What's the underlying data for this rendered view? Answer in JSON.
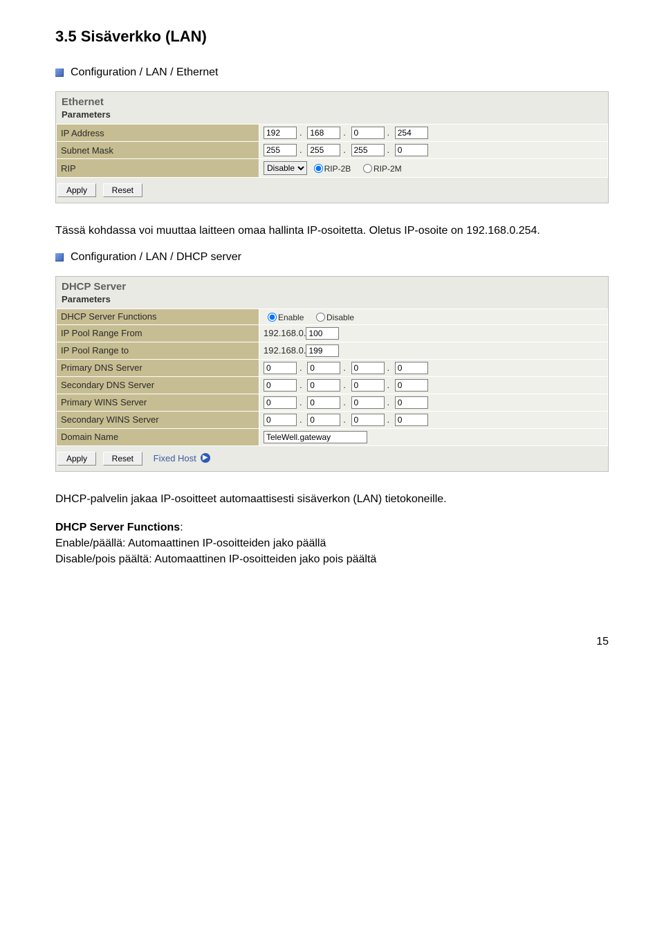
{
  "page": {
    "title": "3.5 Sisäverkko (LAN)",
    "number": "15",
    "typography": {
      "title_fontsize_pt": 16,
      "body_fontsize_pt": 12
    },
    "colors": {
      "label_cell_bg": "#c7bd92",
      "field_cell_bg": "#f0f0ea",
      "panel_bg": "#e9eae4",
      "panel_title_color": "#5f6060",
      "link_color": "#3b5aa0",
      "bullet_gradient_from": "#7aa0e8",
      "bullet_gradient_to": "#3a63b8"
    }
  },
  "section1": {
    "breadcrumb": "Configuration / LAN / Ethernet",
    "panel_title": "Ethernet",
    "panel_subtitle": "Parameters",
    "rows": {
      "ip_label": "IP Address",
      "ip": [
        "192",
        "168",
        "0",
        "254"
      ],
      "mask_label": "Subnet Mask",
      "mask": [
        "255",
        "255",
        "255",
        "0"
      ],
      "rip_label": "RIP",
      "rip_select": "Disable",
      "rip_radio1": "RIP-2B",
      "rip_radio2": "RIP-2M"
    },
    "buttons": {
      "apply": "Apply",
      "reset": "Reset"
    },
    "after_text": "Tässä kohdassa voi muuttaa laitteen omaa hallinta IP-osoitetta. Oletus IP-osoite on 192.168.0.254."
  },
  "section2": {
    "breadcrumb": "Configuration / LAN / DHCP server",
    "panel_title": "DHCP Server",
    "panel_subtitle": "Parameters",
    "rows": {
      "func_label": "DHCP Server Functions",
      "func_enable": "Enable",
      "func_disable": "Disable",
      "pool_from_label": "IP Pool Range From",
      "pool_from_prefix": "192.168.0.",
      "pool_from_value": "100",
      "pool_to_label": "IP Pool Range to",
      "pool_to_prefix": "192.168.0.",
      "pool_to_value": "199",
      "pdns_label": "Primary DNS Server",
      "pdns": [
        "0",
        "0",
        "0",
        "0"
      ],
      "sdns_label": "Secondary DNS Server",
      "sdns": [
        "0",
        "0",
        "0",
        "0"
      ],
      "pwins_label": "Primary WINS Server",
      "pwins": [
        "0",
        "0",
        "0",
        "0"
      ],
      "swins_label": "Secondary WINS Server",
      "swins": [
        "0",
        "0",
        "0",
        "0"
      ],
      "domain_label": "Domain Name",
      "domain_value": "TeleWell.gateway"
    },
    "buttons": {
      "apply": "Apply",
      "reset": "Reset",
      "fixed_host": "Fixed Host"
    },
    "after_text1": "DHCP-palvelin jakaa IP-osoitteet automaattisesti sisäverkon (LAN) tietokoneille.",
    "after_heading": "DHCP Server Functions",
    "after_line2": "Enable/päällä: Automaattinen IP-osoitteiden jako päällä",
    "after_line3": "Disable/pois päältä: Automaattinen IP-osoitteiden jako pois päältä"
  }
}
